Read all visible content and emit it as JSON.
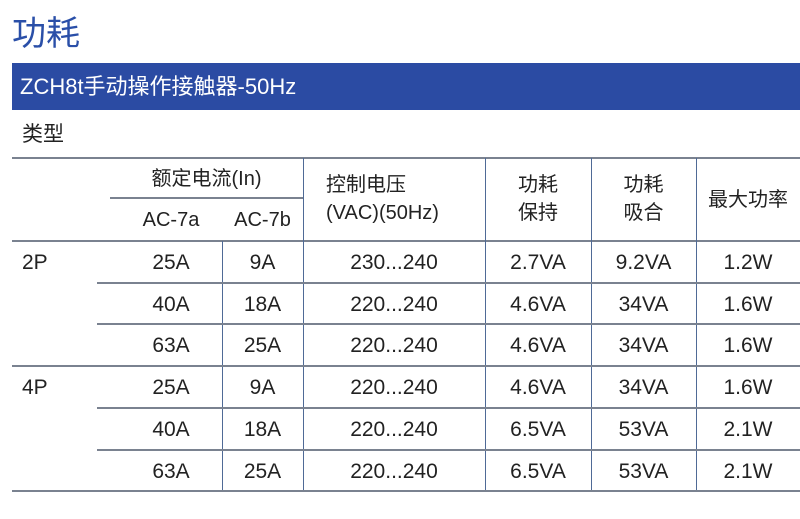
{
  "page_title": "功耗",
  "section_bar": "ZCH8t手动操作接触器-50Hz",
  "type_label": "类型",
  "table": {
    "headers": {
      "rated_current": "额定电流(In)",
      "ac7a": "AC-7a",
      "ac7b": "AC-7b",
      "control_voltage_line1": "控制电压",
      "control_voltage_line2": "(VAC)(50Hz)",
      "hold_line1": "功耗",
      "hold_line2": "保持",
      "pull_line1": "功耗",
      "pull_line2": "吸合",
      "max_power": "最大功率"
    },
    "groups": [
      {
        "pole": "2P",
        "rows": [
          [
            "25A",
            "9A",
            "230...240",
            "2.7VA",
            "9.2VA",
            "1.2W"
          ],
          [
            "40A",
            "18A",
            "220...240",
            "4.6VA",
            "34VA",
            "1.6W"
          ],
          [
            "63A",
            "25A",
            "220...240",
            "4.6VA",
            "34VA",
            "1.6W"
          ]
        ]
      },
      {
        "pole": "4P",
        "rows": [
          [
            "25A",
            "9A",
            "220...240",
            "4.6VA",
            "34VA",
            "1.6W"
          ],
          [
            "40A",
            "18A",
            "220...240",
            "6.5VA",
            "53VA",
            "2.1W"
          ],
          [
            "63A",
            "25A",
            "220...240",
            "6.5VA",
            "53VA",
            "2.1W"
          ]
        ]
      }
    ]
  },
  "colors": {
    "accent": "#2b4ba3",
    "title": "#2a4fa8"
  }
}
